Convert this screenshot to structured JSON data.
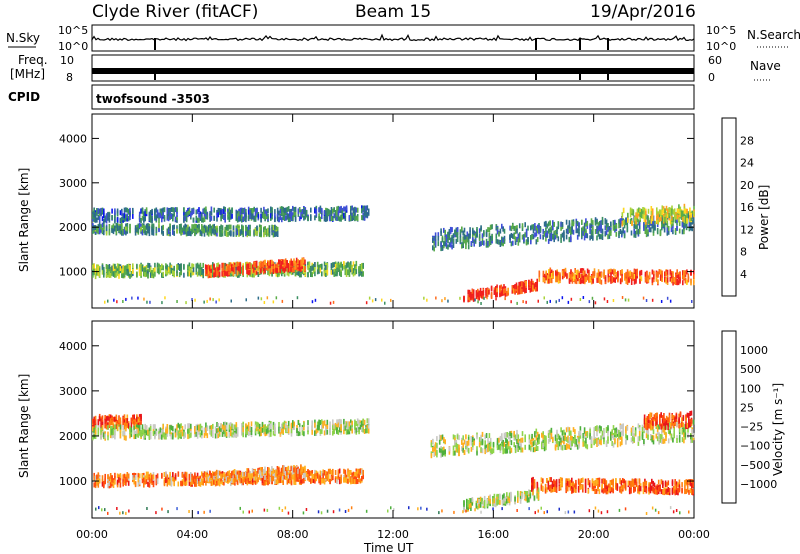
{
  "header": {
    "station": "Clyde River (fitACF)",
    "beam": "Beam 15",
    "date": "19/Apr/2016"
  },
  "summary_panels": {
    "nsky_label": "N.Sky",
    "nsky_ticks": [
      "10^5",
      "10^0"
    ],
    "nsearch_label": "N.Search",
    "freq_label_line1": "Freq.",
    "freq_label_line2": "[MHz]",
    "freq_ticks": [
      "10",
      "8"
    ],
    "nave_label": "Nave",
    "nave_ticks": [
      "60",
      "0"
    ],
    "cpid_label": "CPID",
    "cpid_text": "twofsound  -3503"
  },
  "chart_data": [
    {
      "type": "heatmap",
      "title": "",
      "ylabel": "Slant Range [km]",
      "xlabel": "",
      "x_ticks": [
        "00:00",
        "04:00",
        "08:00",
        "12:00",
        "16:00",
        "20:00",
        "00:00"
      ],
      "xlim_hours": [
        0,
        24
      ],
      "y_ticks": [
        1000,
        2000,
        3000,
        4000
      ],
      "ylim_km": [
        180,
        4550
      ],
      "colorbar": {
        "label": "Power [dB]",
        "ticks": [
          "4",
          "8",
          "12",
          "16",
          "20",
          "24",
          "28"
        ],
        "colors": [
          "#0a14f0",
          "#3f4fd8",
          "#2d6c8a",
          "#3a8f61",
          "#5aac48",
          "#a9d33a",
          "#ffd820",
          "#ffa020",
          "#ff6a1a",
          "#f0201e"
        ]
      },
      "scatter_bands": [
        {
          "start_h": 0.0,
          "end_h": 11.0,
          "center_km_start": 2250,
          "center_km_end": 2300,
          "width_km": 260,
          "level": 0.25
        },
        {
          "start_h": 0.0,
          "end_h": 10.8,
          "center_km_start": 1000,
          "center_km_end": 1050,
          "width_km": 250,
          "level": 0.45
        },
        {
          "start_h": 4.5,
          "end_h": 8.5,
          "center_km_start": 1000,
          "center_km_end": 1150,
          "width_km": 220,
          "level": 0.9
        },
        {
          "start_h": 0.0,
          "end_h": 7.5,
          "center_km_start": 1950,
          "center_km_end": 1900,
          "width_km": 180,
          "level": 0.35
        },
        {
          "start_h": 14.8,
          "end_h": 17.8,
          "center_km_start": 420,
          "center_km_end": 700,
          "width_km": 200,
          "level": 0.95
        },
        {
          "start_h": 17.8,
          "end_h": 24.0,
          "center_km_start": 900,
          "center_km_end": 850,
          "width_km": 260,
          "level": 0.85
        },
        {
          "start_h": 13.5,
          "end_h": 24.0,
          "center_km_start": 1700,
          "center_km_end": 2100,
          "width_km": 420,
          "level": 0.3
        },
        {
          "start_h": 21.0,
          "end_h": 24.0,
          "center_km_start": 2200,
          "center_km_end": 2300,
          "width_km": 350,
          "level": 0.6
        }
      ]
    },
    {
      "type": "heatmap",
      "title": "",
      "ylabel": "Slant Range [km]",
      "xlabel": "Time UT",
      "x_ticks": [
        "00:00",
        "04:00",
        "08:00",
        "12:00",
        "16:00",
        "20:00",
        "00:00"
      ],
      "xlim_hours": [
        0,
        24
      ],
      "y_ticks": [
        1000,
        2000,
        3000,
        4000
      ],
      "ylim_km": [
        180,
        4550
      ],
      "colorbar": {
        "label": "Velocity [m s⁻¹]",
        "ticks": [
          "1000",
          "500",
          "100",
          "25",
          "−25",
          "−100",
          "−500",
          "−1000"
        ],
        "colors": [
          "#1a2cc8",
          "#3c5fd8",
          "#2f7a55",
          "#4caf3c",
          "#8fd44a",
          "#c9c9c4",
          "#ffb020",
          "#ff8010",
          "#ff4a10",
          "#e8141a"
        ]
      },
      "scatter_bands": [
        {
          "start_h": 0.0,
          "end_h": 2.0,
          "center_km_start": 2300,
          "center_km_end": 2300,
          "width_km": 250,
          "level": 0.85
        },
        {
          "start_h": 0.0,
          "end_h": 11.0,
          "center_km_start": 2050,
          "center_km_end": 2200,
          "width_km": 260,
          "level": 0.5
        },
        {
          "start_h": 0.0,
          "end_h": 10.8,
          "center_km_start": 1000,
          "center_km_end": 1100,
          "width_km": 250,
          "level": 0.75
        },
        {
          "start_h": 4.5,
          "end_h": 8.5,
          "center_km_start": 1050,
          "center_km_end": 1200,
          "width_km": 240,
          "level": 0.7
        },
        {
          "start_h": 14.8,
          "end_h": 17.8,
          "center_km_start": 450,
          "center_km_end": 700,
          "width_km": 200,
          "level": 0.5
        },
        {
          "start_h": 17.5,
          "end_h": 24.0,
          "center_km_start": 900,
          "center_km_end": 850,
          "width_km": 260,
          "level": 0.82
        },
        {
          "start_h": 13.5,
          "end_h": 24.0,
          "center_km_start": 1750,
          "center_km_end": 2100,
          "width_km": 420,
          "level": 0.5
        },
        {
          "start_h": 22.0,
          "end_h": 24.0,
          "center_km_start": 2300,
          "center_km_end": 2350,
          "width_km": 300,
          "level": 0.85
        }
      ]
    }
  ]
}
